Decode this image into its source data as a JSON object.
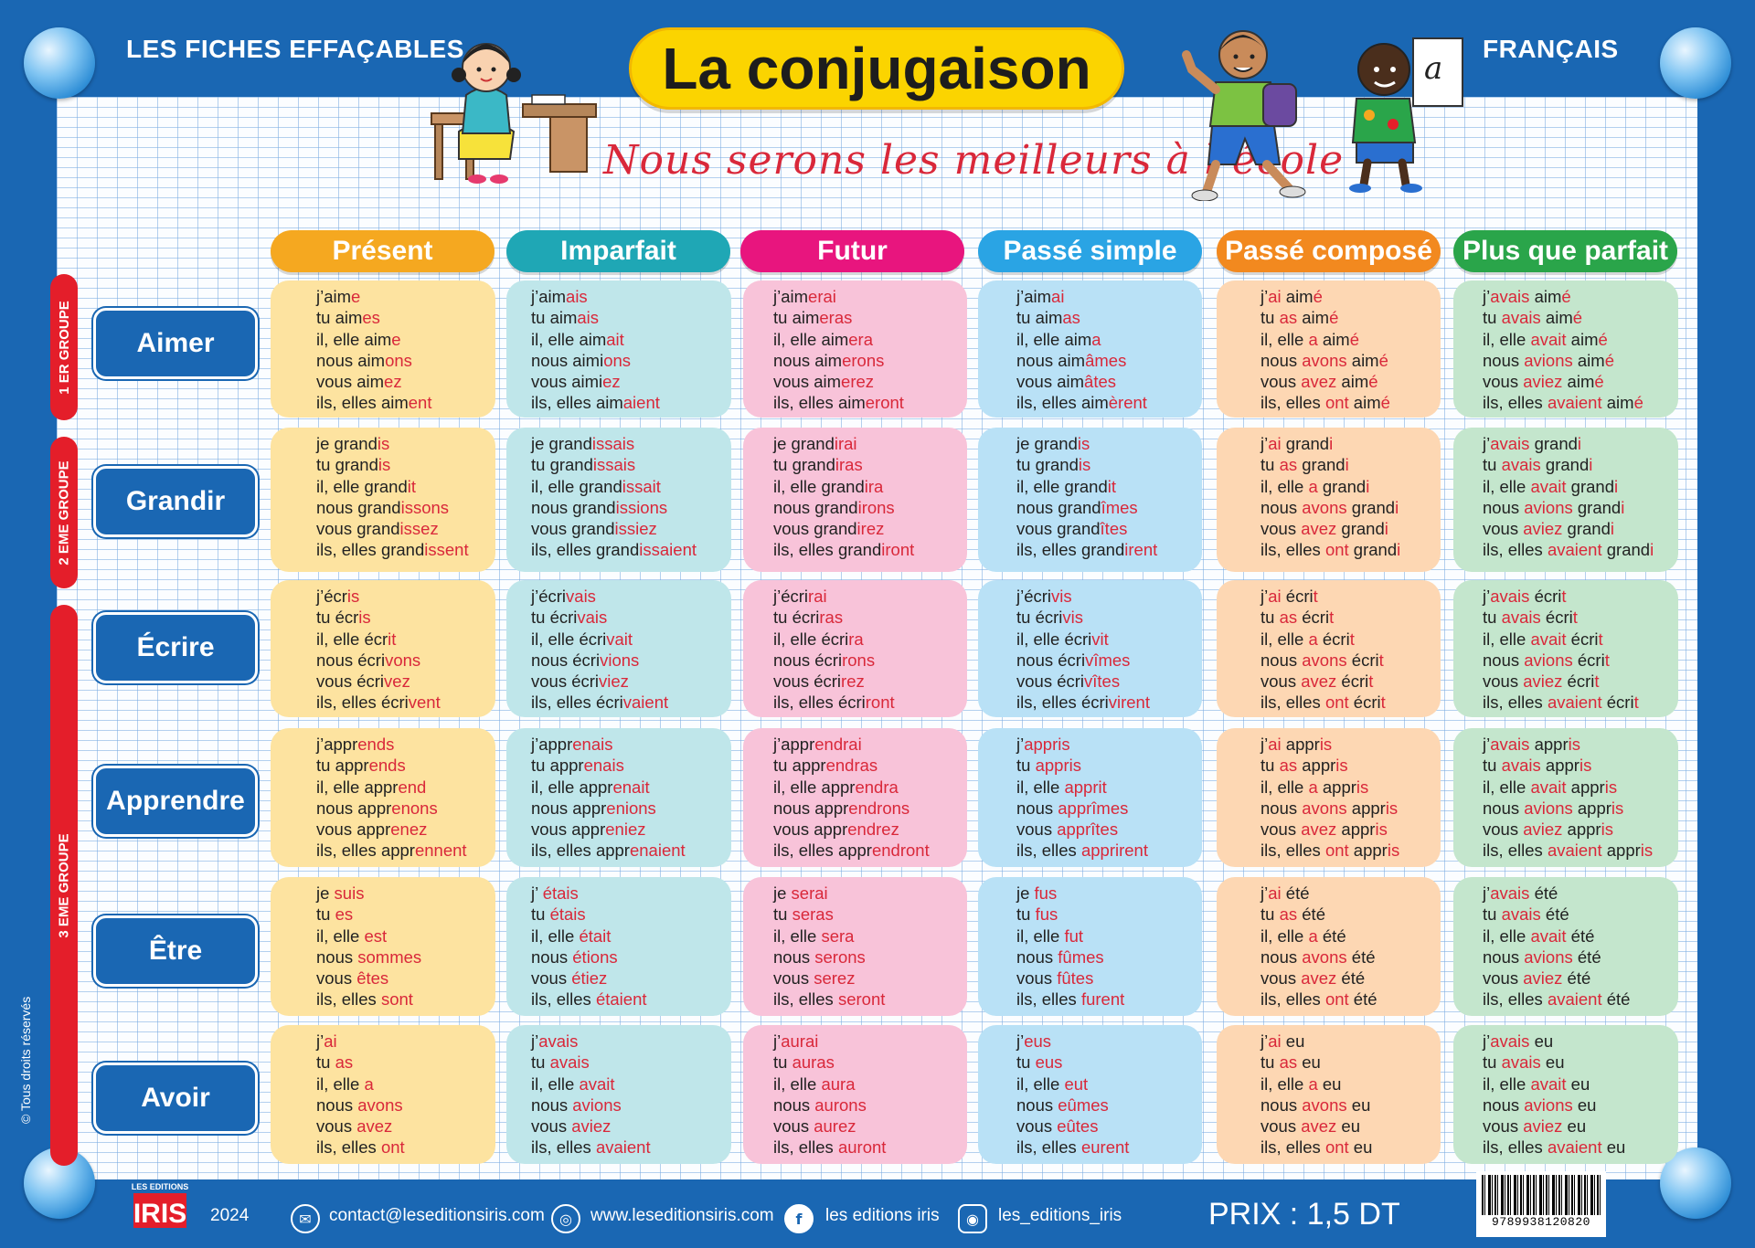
{
  "header": {
    "left_label": "LES FICHES EFFAÇABLES",
    "right_label": "FRANÇAIS",
    "title": "La conjugaison",
    "slogan": "Nous serons les meilleurs à l’école"
  },
  "tenses": [
    {
      "label": "Présent",
      "color": "#f5a820",
      "cell": "#fde3a0"
    },
    {
      "label": "Imparfait",
      "color": "#1fa7b5",
      "cell": "#bfe6ea"
    },
    {
      "label": "Futur",
      "color": "#e8157e",
      "cell": "#f8c3d9"
    },
    {
      "label": "Passé simple",
      "color": "#2aa4e4",
      "cell": "#b9e1f6"
    },
    {
      "label": "Passé composé",
      "color": "#f2891f",
      "cell": "#fdd7b3"
    },
    {
      "label": "Plus que parfait",
      "color": "#2aa54a",
      "cell": "#c4e6cd"
    }
  ],
  "groups": [
    {
      "label": "1 ER GROUPE"
    },
    {
      "label": "2 EME GROUPE"
    },
    {
      "label": "3 EME GROUPE"
    }
  ],
  "verbs": [
    {
      "label": "Aimer",
      "cells": [
        [
          [
            "j’aim",
            "e"
          ],
          [
            "tu aim",
            "es"
          ],
          [
            "il, elle aim",
            "e"
          ],
          [
            "nous aim",
            "ons"
          ],
          [
            "vous aim",
            "ez"
          ],
          [
            "ils, elles aim",
            "ent"
          ]
        ],
        [
          [
            "j’aim",
            "ais"
          ],
          [
            "tu aim",
            "ais"
          ],
          [
            "il, elle aim",
            "ait"
          ],
          [
            "nous aimi",
            "ons"
          ],
          [
            "vous aimi",
            "ez"
          ],
          [
            "ils, elles aim",
            "aient"
          ]
        ],
        [
          [
            "j’aim",
            "erai"
          ],
          [
            "tu aim",
            "eras"
          ],
          [
            "il, elle aim",
            "era"
          ],
          [
            "nous aim",
            "erons"
          ],
          [
            "vous aim",
            "erez"
          ],
          [
            "ils, elles aim",
            "eront"
          ]
        ],
        [
          [
            "j’aim",
            "ai"
          ],
          [
            "tu aim",
            "as"
          ],
          [
            "il, elle aim",
            "a"
          ],
          [
            "nous aim",
            "âmes"
          ],
          [
            "vous aim",
            "âtes"
          ],
          [
            "ils, elles aim",
            "èrent"
          ]
        ],
        [
          [
            "j’",
            "ai",
            " aim",
            "é"
          ],
          [
            "tu ",
            "as",
            " aim",
            "é"
          ],
          [
            "il, elle ",
            "a",
            " aim",
            "é"
          ],
          [
            "nous ",
            "avons",
            " aim",
            "é"
          ],
          [
            "vous ",
            "avez",
            " aim",
            "é"
          ],
          [
            "ils, elles ",
            "ont",
            " aim",
            "é"
          ]
        ],
        [
          [
            "j’",
            "avais",
            " aim",
            "é"
          ],
          [
            "tu ",
            "avais",
            " aim",
            "é"
          ],
          [
            "il, elle ",
            "avait",
            " aim",
            "é"
          ],
          [
            "nous ",
            "avions",
            " aim",
            "é"
          ],
          [
            "vous ",
            "aviez",
            " aim",
            "é"
          ],
          [
            "ils, elles ",
            "avaient",
            " aim",
            "é"
          ]
        ]
      ]
    },
    {
      "label": "Grandir",
      "cells": [
        [
          [
            "je grand",
            "is"
          ],
          [
            "tu grand",
            "is"
          ],
          [
            "il, elle grand",
            "it"
          ],
          [
            "nous grand",
            "issons"
          ],
          [
            "vous grand",
            "issez"
          ],
          [
            "ils, elles grand",
            "issent"
          ]
        ],
        [
          [
            "je grand",
            "issais"
          ],
          [
            "tu grand",
            "issais"
          ],
          [
            "il, elle grand",
            "issait"
          ],
          [
            "nous grand",
            "issions"
          ],
          [
            "vous grand",
            "issiez"
          ],
          [
            "ils, elles grand",
            "issaient"
          ]
        ],
        [
          [
            "je grand",
            "irai"
          ],
          [
            "tu grand",
            "iras"
          ],
          [
            "il, elle grand",
            "ira"
          ],
          [
            "nous grand",
            "irons"
          ],
          [
            "vous grand",
            "irez"
          ],
          [
            "ils, elles grand",
            "iront"
          ]
        ],
        [
          [
            "je grand",
            "is"
          ],
          [
            "tu grand",
            "is"
          ],
          [
            "il, elle grand",
            "it"
          ],
          [
            "nous grand",
            "îmes"
          ],
          [
            "vous grand",
            "îtes"
          ],
          [
            "ils, elles grand",
            "irent"
          ]
        ],
        [
          [
            "j’",
            "ai",
            " grand",
            "i"
          ],
          [
            "tu ",
            "as",
            " grand",
            "i"
          ],
          [
            "il, elle ",
            "a",
            " grand",
            "i"
          ],
          [
            "nous ",
            "avons",
            " grand",
            "i"
          ],
          [
            "vous ",
            "avez",
            " grand",
            "i"
          ],
          [
            "ils, elles ",
            "ont",
            " grand",
            "i"
          ]
        ],
        [
          [
            "j’",
            "avais",
            " grand",
            "i"
          ],
          [
            "tu ",
            "avais",
            " grand",
            "i"
          ],
          [
            "il, elle ",
            "avait",
            " grand",
            "i"
          ],
          [
            "nous ",
            "avions",
            " grand",
            "i"
          ],
          [
            "vous ",
            "aviez",
            " grand",
            "i"
          ],
          [
            "ils, elles ",
            "avaient",
            " grand",
            "i"
          ]
        ]
      ]
    },
    {
      "label": "Écrire",
      "cells": [
        [
          [
            "j’écr",
            "is"
          ],
          [
            "tu écr",
            "is"
          ],
          [
            "il, elle écr",
            "it"
          ],
          [
            "nous écri",
            "vons"
          ],
          [
            "vous écri",
            "vez"
          ],
          [
            "ils, elles écri",
            "vent"
          ]
        ],
        [
          [
            "j’écri",
            "vais"
          ],
          [
            "tu écri",
            "vais"
          ],
          [
            "il, elle écri",
            "vait"
          ],
          [
            "nous écri",
            "vions"
          ],
          [
            "vous écri",
            "viez"
          ],
          [
            "ils, elles écri",
            "vaient"
          ]
        ],
        [
          [
            "j’écri",
            "rai"
          ],
          [
            "tu écri",
            "ras"
          ],
          [
            "il, elle écri",
            "ra"
          ],
          [
            "nous écri",
            "rons"
          ],
          [
            "vous écri",
            "rez"
          ],
          [
            "ils, elles écri",
            "ront"
          ]
        ],
        [
          [
            "j’écri",
            "vis"
          ],
          [
            "tu écri",
            "vis"
          ],
          [
            "il, elle écri",
            "vit"
          ],
          [
            "nous écri",
            "vîmes"
          ],
          [
            "vous écri",
            "vîtes"
          ],
          [
            "ils, elles écri",
            "virent"
          ]
        ],
        [
          [
            "j’",
            "ai",
            " écri",
            "t"
          ],
          [
            "tu ",
            "as",
            " écri",
            "t"
          ],
          [
            "il, elle ",
            "a",
            " écri",
            "t"
          ],
          [
            "nous ",
            "avons",
            " écri",
            "t"
          ],
          [
            "vous ",
            "avez",
            " écri",
            "t"
          ],
          [
            "ils, elles ",
            "ont",
            " écri",
            "t"
          ]
        ],
        [
          [
            "j’",
            "avais",
            " écri",
            "t"
          ],
          [
            "tu ",
            "avais",
            " écri",
            "t"
          ],
          [
            "il, elle ",
            "avait",
            " écri",
            "t"
          ],
          [
            "nous ",
            "avions",
            " écri",
            "t"
          ],
          [
            "vous ",
            "aviez",
            " écri",
            "t"
          ],
          [
            "ils, elles ",
            "avaient",
            " écri",
            "t"
          ]
        ]
      ]
    },
    {
      "label": "Apprendre",
      "cells": [
        [
          [
            "j’appr",
            "ends"
          ],
          [
            "tu appr",
            "ends"
          ],
          [
            "il, elle appr",
            "end"
          ],
          [
            "nous appr",
            "enons"
          ],
          [
            "vous appr",
            "enez"
          ],
          [
            "ils, elles appr",
            "ennent"
          ]
        ],
        [
          [
            "j’appr",
            "enais"
          ],
          [
            "tu appr",
            "enais"
          ],
          [
            "il, elle appr",
            "enait"
          ],
          [
            "nous appr",
            "enions"
          ],
          [
            "vous appr",
            "eniez"
          ],
          [
            "ils, elles appr",
            "enaient"
          ]
        ],
        [
          [
            "j’appr",
            "endrai"
          ],
          [
            "tu appr",
            "endras"
          ],
          [
            "il, elle appr",
            "endra"
          ],
          [
            "nous appr",
            "endrons"
          ],
          [
            "vous appr",
            "endrez"
          ],
          [
            "ils, elles appr",
            "endront"
          ]
        ],
        [
          [
            "j’",
            "appris"
          ],
          [
            "tu ",
            "appris"
          ],
          [
            "il, elle ",
            "apprit"
          ],
          [
            "nous ",
            "apprîmes"
          ],
          [
            "vous ",
            "apprîtes"
          ],
          [
            "ils, elles ",
            "apprirent"
          ]
        ],
        [
          [
            "j’",
            "ai",
            " appr",
            "is"
          ],
          [
            "tu ",
            "as",
            " appr",
            "is"
          ],
          [
            "il, elle ",
            "a",
            " appr",
            "is"
          ],
          [
            "nous ",
            "avons",
            " appr",
            "is"
          ],
          [
            "vous ",
            "avez",
            " appr",
            "is"
          ],
          [
            "ils, elles ",
            "ont",
            " appr",
            "is"
          ]
        ],
        [
          [
            "j’",
            "avais",
            " appr",
            "is"
          ],
          [
            "tu ",
            "avais",
            " appr",
            "is"
          ],
          [
            "il, elle ",
            "avait",
            " appr",
            "is"
          ],
          [
            "nous ",
            "avions",
            " appr",
            "is"
          ],
          [
            "vous ",
            "aviez",
            " appr",
            "is"
          ],
          [
            "ils, elles ",
            "avaient",
            " appr",
            "is"
          ]
        ]
      ]
    },
    {
      "label": "Être",
      "cells": [
        [
          [
            "je ",
            "suis"
          ],
          [
            "tu ",
            "es"
          ],
          [
            "il, elle ",
            "est"
          ],
          [
            "nous ",
            "sommes"
          ],
          [
            "vous ",
            "êtes"
          ],
          [
            "ils, elles ",
            "sont"
          ]
        ],
        [
          [
            "j’ ",
            "étais"
          ],
          [
            "tu ",
            "étais"
          ],
          [
            "il, elle ",
            "était"
          ],
          [
            "nous ",
            "étions"
          ],
          [
            "vous ",
            "étiez"
          ],
          [
            "ils, elles ",
            "étaient"
          ]
        ],
        [
          [
            "je ",
            "serai"
          ],
          [
            "tu ",
            "seras"
          ],
          [
            "il, elle ",
            "sera"
          ],
          [
            "nous ",
            "serons"
          ],
          [
            "vous ",
            "serez"
          ],
          [
            "ils, elles ",
            "seront"
          ]
        ],
        [
          [
            "je ",
            "fus"
          ],
          [
            "tu ",
            "fus"
          ],
          [
            "il, elle ",
            "fut"
          ],
          [
            "nous ",
            "fûmes"
          ],
          [
            "vous ",
            "fûtes"
          ],
          [
            "ils, elles ",
            "furent"
          ]
        ],
        [
          [
            "j’",
            "ai",
            " été"
          ],
          [
            "tu ",
            "as",
            " été"
          ],
          [
            "il, elle ",
            "a",
            " été"
          ],
          [
            "nous ",
            "avons",
            " été"
          ],
          [
            "vous ",
            "avez",
            " été"
          ],
          [
            "ils, elles ",
            "ont",
            " été"
          ]
        ],
        [
          [
            "j’",
            "avais",
            " été"
          ],
          [
            "tu ",
            "avais",
            " été"
          ],
          [
            "il, elle ",
            "avait",
            " été"
          ],
          [
            "nous ",
            "avions",
            " été"
          ],
          [
            "vous ",
            "aviez",
            " été"
          ],
          [
            "ils, elles ",
            "avaient",
            " été"
          ]
        ]
      ]
    },
    {
      "label": "Avoir",
      "cells": [
        [
          [
            "j’",
            "ai"
          ],
          [
            "tu ",
            "as"
          ],
          [
            "il, elle ",
            "a"
          ],
          [
            "nous ",
            "avons"
          ],
          [
            "vous ",
            "avez"
          ],
          [
            "ils, elles ",
            "ont"
          ]
        ],
        [
          [
            "j’",
            "avais"
          ],
          [
            "tu ",
            "avais"
          ],
          [
            "il, elle ",
            "avait"
          ],
          [
            "nous ",
            "avions"
          ],
          [
            "vous ",
            "aviez"
          ],
          [
            "ils, elles ",
            "avaient"
          ]
        ],
        [
          [
            "j’",
            "aurai"
          ],
          [
            "tu ",
            "auras"
          ],
          [
            "il, elle ",
            "aura"
          ],
          [
            "nous ",
            "aurons"
          ],
          [
            "vous ",
            "aurez"
          ],
          [
            "ils, elles ",
            "auront"
          ]
        ],
        [
          [
            "j’",
            "eus"
          ],
          [
            "tu ",
            "eus"
          ],
          [
            "il, elle ",
            "eut"
          ],
          [
            "nous ",
            "eûmes"
          ],
          [
            "vous ",
            "eûtes"
          ],
          [
            "ils, elles ",
            "eurent"
          ]
        ],
        [
          [
            "j’",
            "ai",
            " eu"
          ],
          [
            "tu ",
            "as",
            " eu"
          ],
          [
            "il, elle ",
            "a",
            " eu"
          ],
          [
            "nous ",
            "avons",
            " eu"
          ],
          [
            "vous ",
            "avez",
            " eu"
          ],
          [
            "ils, elles ",
            "ont",
            " eu"
          ]
        ],
        [
          [
            "j’",
            "avais",
            " eu"
          ],
          [
            "tu ",
            "avais",
            " eu"
          ],
          [
            "il, elle ",
            "avait",
            " eu"
          ],
          [
            "nous ",
            "avions",
            " eu"
          ],
          [
            "vous ",
            "aviez",
            " eu"
          ],
          [
            "ils, elles ",
            "avaient",
            " eu"
          ]
        ]
      ]
    }
  ],
  "footer": {
    "copyright": "© Tous droits réservés",
    "publisher_top": "LES EDITIONS",
    "publisher_name": "IRIS",
    "year": "2024",
    "email": "contact@leseditionsiris.com",
    "website": "www.leseditionsiris.com",
    "facebook": "les editions iris",
    "instagram": "les_editions_iris",
    "price": "PRIX : 1,5 DT",
    "barcode": "9789938120820"
  },
  "icons": {
    "email": "mail-icon",
    "website": "globe-icon",
    "facebook": "facebook-icon",
    "instagram": "instagram-icon"
  },
  "colors": {
    "frame_blue": "#1a67b3",
    "ending_red": "#d9283a",
    "title_yellow": "#fbd400",
    "group_red": "#e41e2a"
  }
}
